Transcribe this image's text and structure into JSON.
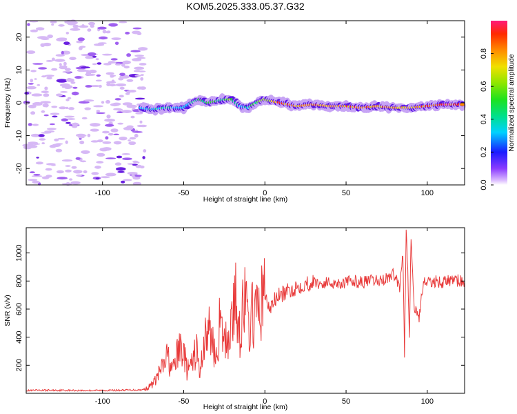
{
  "title": "KOM5.2025.333.05.37.G32",
  "chart_data": [
    {
      "type": "heatmap",
      "xlabel": "Height of straight line (km)",
      "ylabel": "Frequency (Hz)",
      "xlim": [
        -147,
        123
      ],
      "ylim": [
        -25,
        25
      ],
      "xticks": [
        -100,
        -50,
        0,
        50,
        100
      ],
      "yticks": [
        -20,
        -10,
        0,
        10,
        20
      ],
      "xtick_labels": [
        "-100",
        "-50",
        "0",
        "50",
        "100"
      ],
      "ytick_labels": [
        "-20",
        "-10",
        "0",
        "10",
        "20"
      ],
      "noise_region_x": [
        -147,
        -74
      ],
      "signal_start_x": -76,
      "ridge": {
        "x": [
          -76,
          -70,
          -60,
          -50,
          -45,
          -40,
          -35,
          -30,
          -25,
          -20,
          -15,
          -10,
          -5,
          0,
          5,
          10,
          20,
          30,
          40,
          50,
          60,
          70,
          80,
          90,
          100,
          110,
          120,
          123
        ],
        "freq_hz": [
          -1.5,
          -2,
          -1.5,
          -1.5,
          0,
          1,
          0,
          0.5,
          1,
          1,
          -1,
          -1.5,
          0,
          1,
          0.5,
          0,
          -1,
          -0.5,
          -1,
          -1,
          -1.5,
          -1,
          -1.5,
          -1.5,
          -1,
          -0.5,
          -0.5,
          -0.5
        ],
        "amplitude": [
          0.2,
          0.3,
          0.35,
          0.25,
          0.35,
          0.45,
          0.4,
          0.45,
          0.4,
          0.5,
          0.3,
          0.35,
          0.45,
          0.55,
          0.65,
          0.8,
          0.75,
          0.75,
          0.7,
          0.8,
          0.8,
          0.75,
          0.7,
          0.7,
          0.75,
          0.85,
          0.9,
          0.9
        ]
      },
      "colorbar": {
        "label": "Normalized spectral amplitude",
        "range": [
          0,
          1
        ],
        "ticks": [
          0.0,
          0.2,
          0.4,
          0.6,
          0.8
        ],
        "tick_labels": [
          "0.0",
          "0.2",
          "0.4",
          "0.6",
          "0.8"
        ]
      }
    },
    {
      "type": "line",
      "xlabel": "Height of straight line (km)",
      "ylabel": "SNR (v/v)",
      "xlim": [
        -147,
        123
      ],
      "ylim": [
        0,
        1180
      ],
      "xticks": [
        -100,
        -50,
        0,
        50,
        100
      ],
      "yticks": [
        200,
        400,
        600,
        800,
        1000
      ],
      "xtick_labels": [
        "-100",
        "-50",
        "0",
        "50",
        "100"
      ],
      "ytick_labels": [
        "200",
        "400",
        "600",
        "800",
        "1000"
      ],
      "series": [
        {
          "name": "SNR",
          "color": "#e83a3a",
          "x": [
            -147,
            -130,
            -110,
            -90,
            -75,
            -72,
            -68,
            -65,
            -62,
            -60,
            -57,
            -55,
            -52,
            -50,
            -48,
            -45,
            -42,
            -40,
            -38,
            -35,
            -32,
            -30,
            -28,
            -25,
            -22,
            -20,
            -18,
            -15,
            -13,
            -10,
            -7,
            -5,
            -2,
            0,
            3,
            5,
            8,
            10,
            15,
            20,
            25,
            30,
            35,
            40,
            45,
            50,
            55,
            60,
            65,
            70,
            75,
            80,
            83,
            85,
            86,
            87,
            88,
            89,
            90,
            92,
            95,
            98,
            100,
            105,
            110,
            115,
            120,
            123
          ],
          "y": [
            20,
            22,
            20,
            22,
            25,
            40,
            80,
            150,
            200,
            270,
            150,
            240,
            330,
            300,
            160,
            200,
            320,
            110,
            350,
            450,
            380,
            230,
            480,
            350,
            420,
            550,
            650,
            430,
            700,
            470,
            580,
            550,
            660,
            700,
            590,
            650,
            690,
            700,
            730,
            760,
            780,
            790,
            780,
            790,
            785,
            790,
            800,
            790,
            800,
            800,
            820,
            850,
            750,
            1000,
            300,
            1180,
            900,
            400,
            1120,
            600,
            550,
            820,
            780,
            800,
            790,
            810,
            800,
            800
          ]
        }
      ]
    }
  ]
}
